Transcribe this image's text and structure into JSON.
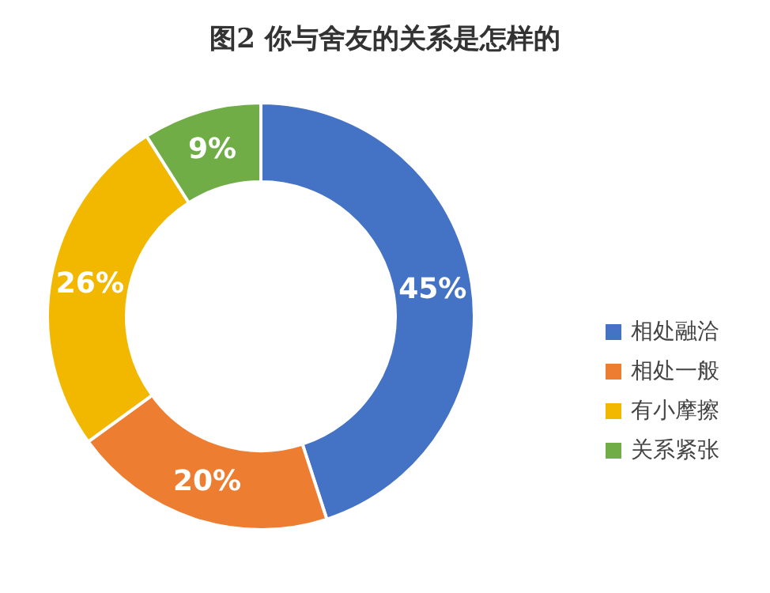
{
  "chart_data": {
    "type": "donut",
    "title": "图2 你与舍友的关系是怎样的",
    "categories": [
      "相处融洽",
      "相处一般",
      "有小摩擦",
      "关系紧张"
    ],
    "values": [
      45,
      20,
      26,
      9
    ],
    "colors": [
      "#4472c4",
      "#ed7d31",
      "#f2b800",
      "#70ad47"
    ],
    "value_labels": [
      "45%",
      "20%",
      "26%",
      "9%"
    ],
    "legend": "right"
  }
}
